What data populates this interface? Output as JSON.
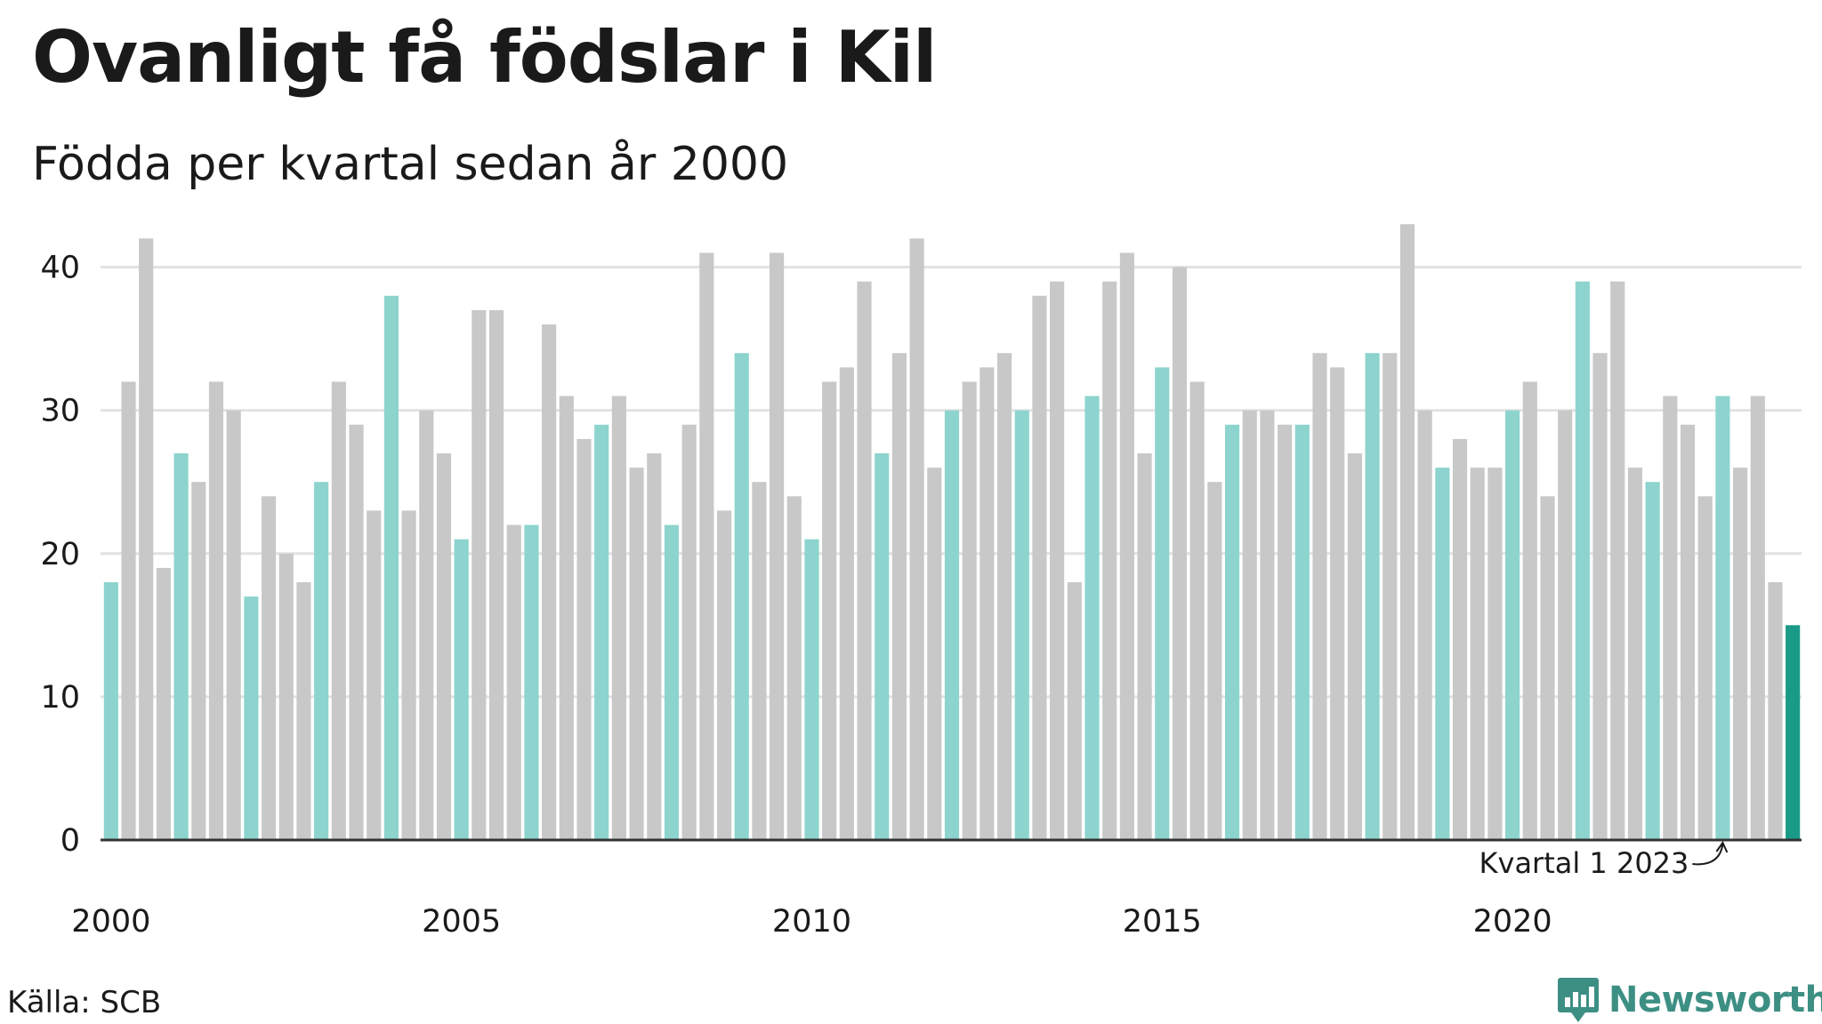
{
  "title": "Ovanligt få födslar i Kil",
  "subtitle": "Födda per kvartal sedan år 2000",
  "source": "Källa: SCB",
  "brand": {
    "name": "Newsworthy",
    "icon": "newsworthy-logo-icon"
  },
  "colors": {
    "q1": "#8dd4ce",
    "other": "#c8c8c8",
    "latest": "#1a9a88",
    "grid": "#e2e2e2",
    "axis": "#333333"
  },
  "chart_data": {
    "type": "bar",
    "title": "Ovanligt få födslar i Kil",
    "subtitle": "Födda per kvartal sedan år 2000",
    "xlabel": "",
    "ylabel": "",
    "ylim": [
      0,
      45
    ],
    "yticks": [
      0,
      10,
      20,
      30,
      40
    ],
    "xticks": [
      "2000",
      "2005",
      "2010",
      "2015",
      "2020"
    ],
    "grid": true,
    "start_year": 2000,
    "annotation": {
      "text": "Kvartal 1 2023",
      "target": "2023 Q1"
    },
    "values": [
      18,
      32,
      42,
      19,
      27,
      25,
      32,
      30,
      17,
      24,
      20,
      18,
      25,
      32,
      29,
      23,
      38,
      23,
      30,
      27,
      21,
      37,
      37,
      22,
      22,
      36,
      31,
      28,
      29,
      31,
      26,
      27,
      22,
      29,
      41,
      23,
      34,
      25,
      41,
      24,
      21,
      32,
      33,
      39,
      27,
      34,
      42,
      26,
      30,
      32,
      33,
      34,
      30,
      38,
      39,
      18,
      31,
      39,
      41,
      27,
      33,
      40,
      32,
      25,
      29,
      30,
      30,
      29,
      29,
      34,
      33,
      27,
      34,
      34,
      43,
      30,
      26,
      28,
      26,
      26,
      30,
      32,
      24,
      30,
      39,
      34,
      39,
      26,
      25,
      31,
      29,
      24,
      31,
      26,
      31,
      18,
      15
    ]
  }
}
